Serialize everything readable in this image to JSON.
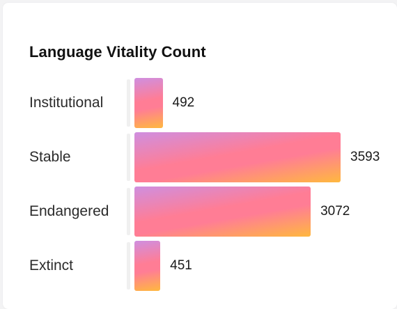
{
  "chart_data": {
    "type": "bar",
    "orientation": "horizontal",
    "title": "Language Vitality Count",
    "categories": [
      "Institutional",
      "Stable",
      "Endangered",
      "Extinct"
    ],
    "values": [
      492,
      3593,
      3072,
      451
    ],
    "xlim": [
      0,
      3593
    ],
    "xlabel": "",
    "ylabel": "",
    "grid": false,
    "legend": "none"
  },
  "colors": {
    "gradient_top": "#cf8fe0",
    "gradient_mid": "#ff7d95",
    "gradient_bottom": "#ffb83f"
  }
}
